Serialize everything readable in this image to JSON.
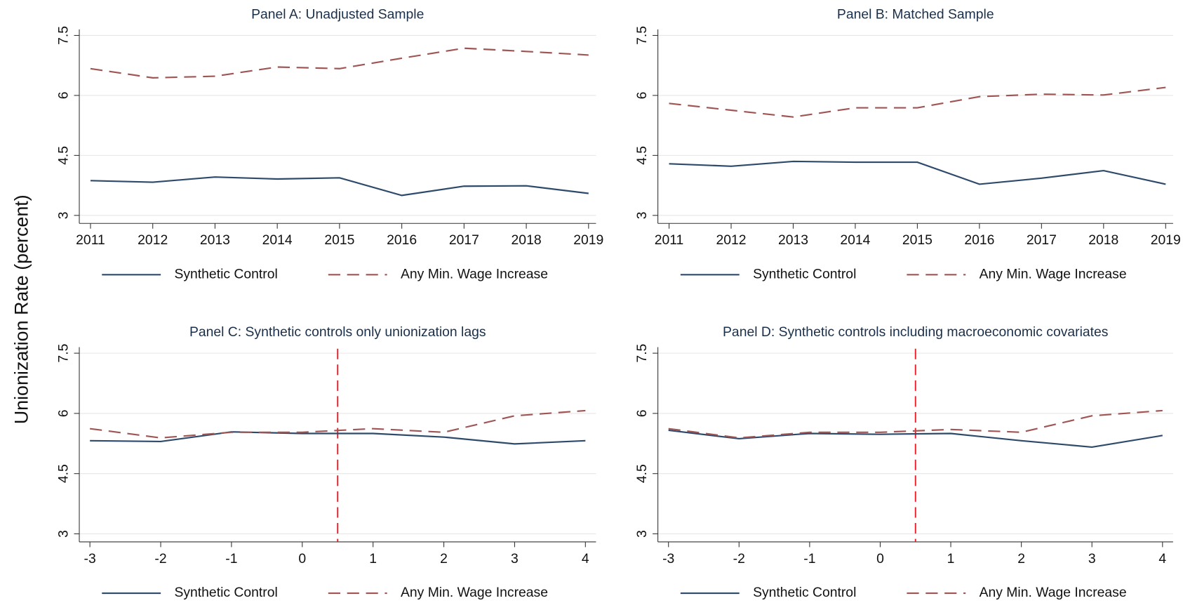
{
  "ylabel": "Unionization Rate (percent)",
  "chart_data": [
    {
      "type": "line",
      "title": "Panel A: Unadjusted Sample",
      "x": [
        2011,
        2012,
        2013,
        2014,
        2015,
        2016,
        2017,
        2018,
        2019
      ],
      "xlim": [
        2010.82,
        2019.12
      ],
      "xticks": [
        2011,
        2012,
        2013,
        2014,
        2015,
        2016,
        2017,
        2018,
        2019
      ],
      "ylim": [
        2.8,
        7.65
      ],
      "yticks": [
        3,
        4.5,
        6,
        7.5
      ],
      "grid": true,
      "series": [
        {
          "name": "Synthetic Control",
          "color": "#2e4a6b",
          "style": "solid",
          "values": [
            3.87,
            3.83,
            3.96,
            3.91,
            3.94,
            3.5,
            3.73,
            3.74,
            3.55
          ]
        },
        {
          "name": "Any Min. Wage Increase",
          "color": "#a05555",
          "style": "dashed",
          "values": [
            6.67,
            6.44,
            6.48,
            6.71,
            6.67,
            6.93,
            7.18,
            7.1,
            7.01
          ]
        }
      ]
    },
    {
      "type": "line",
      "title": "Panel B: Matched Sample",
      "x": [
        2011,
        2012,
        2013,
        2014,
        2015,
        2016,
        2017,
        2018,
        2019
      ],
      "xlim": [
        2010.82,
        2019.12
      ],
      "xticks": [
        2011,
        2012,
        2013,
        2014,
        2015,
        2016,
        2017,
        2018,
        2019
      ],
      "ylim": [
        2.8,
        7.65
      ],
      "yticks": [
        3,
        4.5,
        6,
        7.5
      ],
      "grid": true,
      "series": [
        {
          "name": "Synthetic Control",
          "color": "#2e4a6b",
          "style": "solid",
          "values": [
            4.29,
            4.23,
            4.35,
            4.33,
            4.33,
            3.78,
            3.93,
            4.12,
            3.78
          ]
        },
        {
          "name": "Any Min. Wage Increase",
          "color": "#a05555",
          "style": "dashed",
          "values": [
            5.8,
            5.63,
            5.46,
            5.69,
            5.69,
            5.97,
            6.03,
            6.01,
            6.2
          ]
        }
      ]
    },
    {
      "type": "line",
      "title": "Panel C: Synthetic controls only unionization lags",
      "x": [
        -3,
        -2,
        -1,
        0,
        1,
        2,
        3,
        4
      ],
      "xlim": [
        -3.15,
        4.15
      ],
      "xticks": [
        -3,
        -2,
        -1,
        0,
        1,
        2,
        3,
        4
      ],
      "ylim": [
        2.8,
        7.65
      ],
      "yticks": [
        3,
        4.5,
        6,
        7.5
      ],
      "grid": true,
      "vline": {
        "x": 0.5,
        "color": "#e8202a"
      },
      "series": [
        {
          "name": "Synthetic Control",
          "color": "#2e4a6b",
          "style": "solid",
          "values": [
            5.32,
            5.3,
            5.54,
            5.5,
            5.5,
            5.41,
            5.24,
            5.32
          ]
        },
        {
          "name": "Any Min. Wage Increase",
          "color": "#a05555",
          "style": "dashed",
          "values": [
            5.62,
            5.39,
            5.53,
            5.53,
            5.62,
            5.53,
            5.94,
            6.07
          ]
        }
      ]
    },
    {
      "type": "line",
      "title": "Panel D: Synthetic controls including macroeconomic covariates",
      "x": [
        -3,
        -2,
        -1,
        0,
        1,
        2,
        3,
        4
      ],
      "xlim": [
        -3.15,
        4.15
      ],
      "xticks": [
        -3,
        -2,
        -1,
        0,
        1,
        2,
        3,
        4
      ],
      "ylim": [
        2.8,
        7.65
      ],
      "yticks": [
        3,
        4.5,
        6,
        7.5
      ],
      "grid": true,
      "vline": {
        "x": 0.5,
        "color": "#e8202a"
      },
      "series": [
        {
          "name": "Synthetic Control",
          "color": "#2e4a6b",
          "style": "solid",
          "values": [
            5.58,
            5.37,
            5.5,
            5.48,
            5.5,
            5.32,
            5.16,
            5.45
          ]
        },
        {
          "name": "Any Min. Wage Increase",
          "color": "#a05555",
          "style": "dashed",
          "values": [
            5.62,
            5.39,
            5.53,
            5.53,
            5.6,
            5.53,
            5.94,
            6.07
          ]
        }
      ]
    }
  ]
}
